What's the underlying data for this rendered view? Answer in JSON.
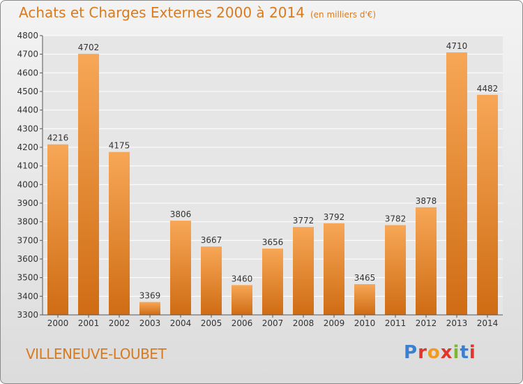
{
  "header": {
    "title": "Achats et Charges Externes 2000 à 2014",
    "subtitle": "(en milliers d'€)"
  },
  "footer": {
    "place": "VILLENEUVE-LOUBET",
    "brand": "Proxiti"
  },
  "colors": {
    "bar_top": "#f7a756",
    "bar_bottom": "#cf6c14",
    "text_accent": "#d97a1e",
    "brand_letters": [
      "#3a7fd0",
      "#e2352b",
      "#f29a1f",
      "#e2352b",
      "#7cb82f",
      "#3a7fd0",
      "#e2352b"
    ]
  },
  "chart_data": {
    "type": "bar",
    "title": "Achats et Charges Externes 2000 à 2014",
    "subtitle": "(en milliers d'€)",
    "categories": [
      "2000",
      "2001",
      "2002",
      "2003",
      "2004",
      "2005",
      "2006",
      "2007",
      "2008",
      "2009",
      "2010",
      "2011",
      "2012",
      "2013",
      "2014"
    ],
    "values": [
      4216,
      4702,
      4175,
      3369,
      3806,
      3667,
      3460,
      3656,
      3772,
      3792,
      3465,
      3782,
      3878,
      4710,
      4482
    ],
    "ylim": [
      3300,
      4800
    ],
    "yticks": [
      3300,
      3400,
      3500,
      3600,
      3700,
      3800,
      3900,
      4000,
      4100,
      4200,
      4300,
      4400,
      4500,
      4600,
      4700,
      4800
    ],
    "grid": true,
    "data_labels": true
  }
}
